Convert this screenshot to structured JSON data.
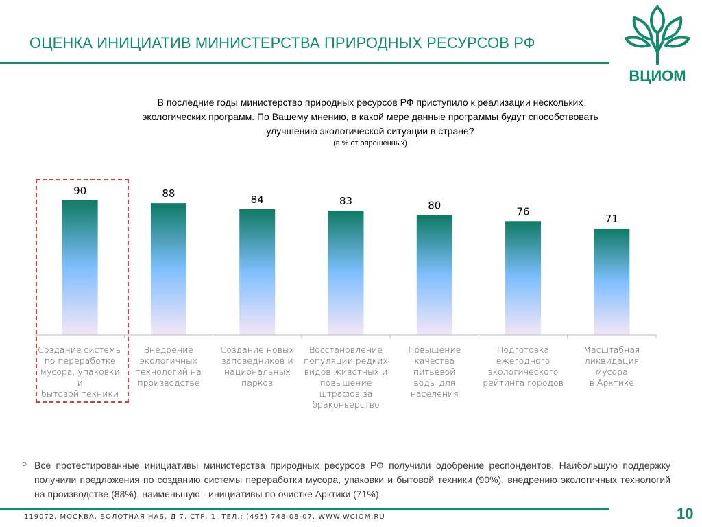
{
  "header": {
    "title": "ОЦЕНКА ИНИЦИАТИВ МИНИСТЕРСТВА ПРИРОДНЫХ РЕСУРСОВ РФ",
    "logo_text": "ВЦИОМ"
  },
  "question": {
    "line1": "В последние годы министерство природных ресурсов РФ приступило к реализации нескольких",
    "line2": "экологических  программ. По Вашему мнению, в какой мере  данные программы будут способствовать",
    "line3": "улучшению экологической ситуации в стране?",
    "note": "(в % от опрошенных)"
  },
  "chart_data": {
    "type": "bar",
    "categories": [
      "Создание системы по переработке мусора, упаковки и бытовой техники",
      "Внедрение экологичных технологий на производстве",
      "Создание новых заповедников и национальных парков",
      "Восстановление популяции редких видов животных и повышение штрафов за браконьерство",
      "Повышение качества питьевой воды для населения",
      "Подготовка ежегодного экологического рейтинга городов",
      "Масштабная ликвидация мусора в Арктике"
    ],
    "category_lines": [
      [
        "Создание системы",
        "по переработке",
        "мусора, упаковки и",
        "бытовой техники"
      ],
      [
        "Внедрение",
        "экологичных",
        "технологий на",
        "производстве"
      ],
      [
        "Создание новых",
        "заповедников и",
        "национальных",
        "парков"
      ],
      [
        "Восстановление",
        "популяции редких",
        "видов животных и",
        "повышение",
        "штрафов за",
        "браконьерство"
      ],
      [
        "Повышение",
        "качества питьевой",
        "воды для населения"
      ],
      [
        "Подготовка",
        "ежегодного",
        "экологического",
        "рейтинга городов"
      ],
      [
        "Масштабная",
        "ликвидация мусора",
        "в Арктике"
      ]
    ],
    "values": [
      90,
      88,
      84,
      83,
      80,
      76,
      71
    ],
    "ylim": [
      0,
      100
    ],
    "highlighted_index": 0,
    "colors": {
      "bar_top": "#0f7a63",
      "bar_mid": "#7fbfff",
      "bar_bottom": "#f3e6f6",
      "highlight_border": "#e03a3a"
    }
  },
  "summary": {
    "text": "Все      протестированные   инициативы    министерства  природных  ресурсов    РФ  получили  одобрение  респондентов. Наибольшую поддержку получили предложения по созданию системы   переработки  мусора, упаковки и бытовой техники (90%), внедрению экологичных технологий на производстве (88%), наименьшую - инициативы по очистке Арктики (71%)."
  },
  "footer": {
    "address": "119072, МОСКВА, БОЛОТНАЯ НАБ, Д 7, СТР. 1, ТЕЛ.: (495) 748-08-07, WWW.WCIOM.RU",
    "page_number": "10"
  },
  "colors": {
    "brand": "#138a6c"
  }
}
